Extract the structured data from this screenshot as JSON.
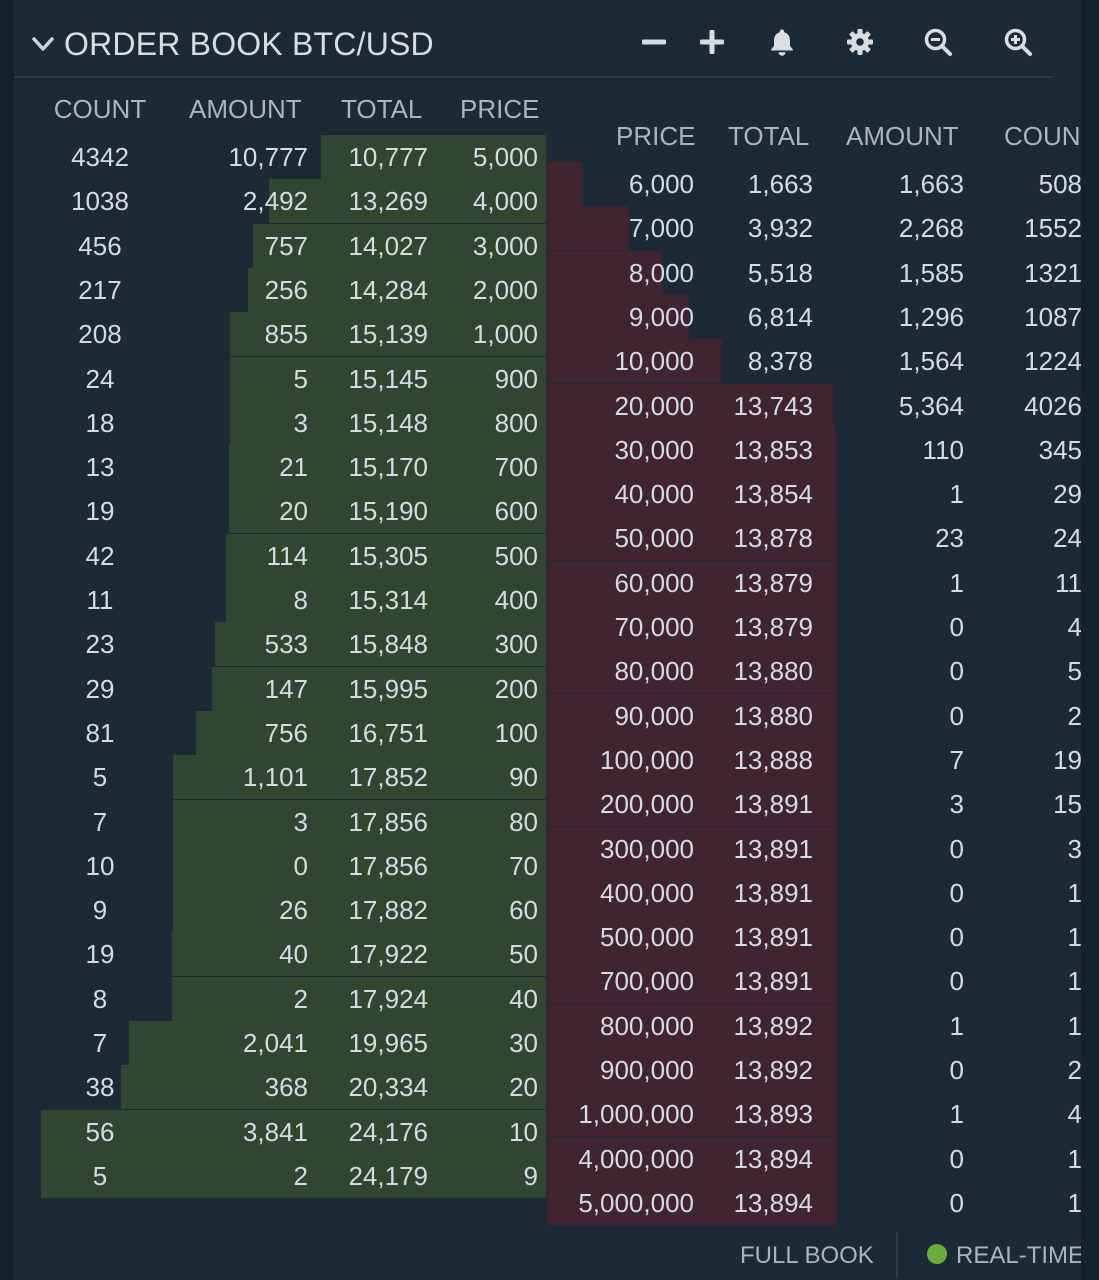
{
  "header": {
    "title_prefix": "ORDER BOOK",
    "title_pair": "BTC/USD",
    "tools": [
      {
        "name": "minus-icon"
      },
      {
        "name": "plus-icon"
      },
      {
        "name": "bell-icon"
      },
      {
        "name": "gear-icon"
      },
      {
        "name": "zoom-out-icon"
      },
      {
        "name": "zoom-in-icon"
      }
    ]
  },
  "bids": {
    "headers": {
      "count": "COUNT",
      "amount": "AMOUNT",
      "total": "TOTAL",
      "price": "PRICE"
    },
    "max_total": 24179,
    "rows": [
      {
        "count": "4342",
        "amount": "10,777",
        "total": "10,777",
        "price": "5,000",
        "total_value": 10777
      },
      {
        "count": "1038",
        "amount": "2,492",
        "total": "13,269",
        "price": "4,000",
        "total_value": 13269
      },
      {
        "count": "456",
        "amount": "757",
        "total": "14,027",
        "price": "3,000",
        "total_value": 14027
      },
      {
        "count": "217",
        "amount": "256",
        "total": "14,284",
        "price": "2,000",
        "total_value": 14284
      },
      {
        "count": "208",
        "amount": "855",
        "total": "15,139",
        "price": "1,000",
        "total_value": 15139
      },
      {
        "count": "24",
        "amount": "5",
        "total": "15,145",
        "price": "900",
        "total_value": 15145
      },
      {
        "count": "18",
        "amount": "3",
        "total": "15,148",
        "price": "800",
        "total_value": 15148
      },
      {
        "count": "13",
        "amount": "21",
        "total": "15,170",
        "price": "700",
        "total_value": 15170
      },
      {
        "count": "19",
        "amount": "20",
        "total": "15,190",
        "price": "600",
        "total_value": 15190
      },
      {
        "count": "42",
        "amount": "114",
        "total": "15,305",
        "price": "500",
        "total_value": 15305
      },
      {
        "count": "11",
        "amount": "8",
        "total": "15,314",
        "price": "400",
        "total_value": 15314
      },
      {
        "count": "23",
        "amount": "533",
        "total": "15,848",
        "price": "300",
        "total_value": 15848
      },
      {
        "count": "29",
        "amount": "147",
        "total": "15,995",
        "price": "200",
        "total_value": 15995
      },
      {
        "count": "81",
        "amount": "756",
        "total": "16,751",
        "price": "100",
        "total_value": 16751
      },
      {
        "count": "5",
        "amount": "1,101",
        "total": "17,852",
        "price": "90",
        "total_value": 17852
      },
      {
        "count": "7",
        "amount": "3",
        "total": "17,856",
        "price": "80",
        "total_value": 17856
      },
      {
        "count": "10",
        "amount": "0",
        "total": "17,856",
        "price": "70",
        "total_value": 17856
      },
      {
        "count": "9",
        "amount": "26",
        "total": "17,882",
        "price": "60",
        "total_value": 17882
      },
      {
        "count": "19",
        "amount": "40",
        "total": "17,922",
        "price": "50",
        "total_value": 17922
      },
      {
        "count": "8",
        "amount": "2",
        "total": "17,924",
        "price": "40",
        "total_value": 17924
      },
      {
        "count": "7",
        "amount": "2,041",
        "total": "19,965",
        "price": "30",
        "total_value": 19965
      },
      {
        "count": "38",
        "amount": "368",
        "total": "20,334",
        "price": "20",
        "total_value": 20334
      },
      {
        "count": "56",
        "amount": "3,841",
        "total": "24,176",
        "price": "10",
        "total_value": 24176
      },
      {
        "count": "5",
        "amount": "2",
        "total": "24,179",
        "price": "9",
        "total_value": 24179
      }
    ]
  },
  "asks": {
    "headers": {
      "price": "PRICE",
      "total": "TOTAL",
      "amount": "AMOUNT",
      "count": "COUN"
    },
    "max_total": 24179,
    "rows": [
      {
        "price": "6,000",
        "total": "1,663",
        "amount": "1,663",
        "count": "508",
        "total_value": 1663
      },
      {
        "price": "7,000",
        "total": "3,932",
        "amount": "2,268",
        "count": "1552",
        "total_value": 3932
      },
      {
        "price": "8,000",
        "total": "5,518",
        "amount": "1,585",
        "count": "1321",
        "total_value": 5518
      },
      {
        "price": "9,000",
        "total": "6,814",
        "amount": "1,296",
        "count": "1087",
        "total_value": 6814
      },
      {
        "price": "10,000",
        "total": "8,378",
        "amount": "1,564",
        "count": "1224",
        "total_value": 8378
      },
      {
        "price": "20,000",
        "total": "13,743",
        "amount": "5,364",
        "count": "4026",
        "total_value": 13743
      },
      {
        "price": "30,000",
        "total": "13,853",
        "amount": "110",
        "count": "345",
        "total_value": 13853
      },
      {
        "price": "40,000",
        "total": "13,854",
        "amount": "1",
        "count": "29",
        "total_value": 13854
      },
      {
        "price": "50,000",
        "total": "13,878",
        "amount": "23",
        "count": "24",
        "total_value": 13878
      },
      {
        "price": "60,000",
        "total": "13,879",
        "amount": "1",
        "count": "11",
        "total_value": 13879
      },
      {
        "price": "70,000",
        "total": "13,879",
        "amount": "0",
        "count": "4",
        "total_value": 13879
      },
      {
        "price": "80,000",
        "total": "13,880",
        "amount": "0",
        "count": "5",
        "total_value": 13880
      },
      {
        "price": "90,000",
        "total": "13,880",
        "amount": "0",
        "count": "2",
        "total_value": 13880
      },
      {
        "price": "100,000",
        "total": "13,888",
        "amount": "7",
        "count": "19",
        "total_value": 13888
      },
      {
        "price": "200,000",
        "total": "13,891",
        "amount": "3",
        "count": "15",
        "total_value": 13891
      },
      {
        "price": "300,000",
        "total": "13,891",
        "amount": "0",
        "count": "3",
        "total_value": 13891
      },
      {
        "price": "400,000",
        "total": "13,891",
        "amount": "0",
        "count": "1",
        "total_value": 13891
      },
      {
        "price": "500,000",
        "total": "13,891",
        "amount": "0",
        "count": "1",
        "total_value": 13891
      },
      {
        "price": "700,000",
        "total": "13,891",
        "amount": "0",
        "count": "1",
        "total_value": 13891
      },
      {
        "price": "800,000",
        "total": "13,892",
        "amount": "1",
        "count": "1",
        "total_value": 13892
      },
      {
        "price": "900,000",
        "total": "13,892",
        "amount": "0",
        "count": "2",
        "total_value": 13892
      },
      {
        "price": "1,000,000",
        "total": "13,893",
        "amount": "1",
        "count": "4",
        "total_value": 13893
      },
      {
        "price": "4,000,000",
        "total": "13,894",
        "amount": "0",
        "count": "1",
        "total_value": 13894
      },
      {
        "price": "5,000,000",
        "total": "13,894",
        "amount": "0",
        "count": "1",
        "total_value": 13894
      }
    ]
  },
  "footer": {
    "full_book_label": "FULL BOOK",
    "realtime_label": "REAL-TIME",
    "realtime_color": "#6bad3d"
  },
  "colors": {
    "bid_bar": "#314630",
    "ask_bar": "#402531",
    "panel": "#1b2a35"
  }
}
